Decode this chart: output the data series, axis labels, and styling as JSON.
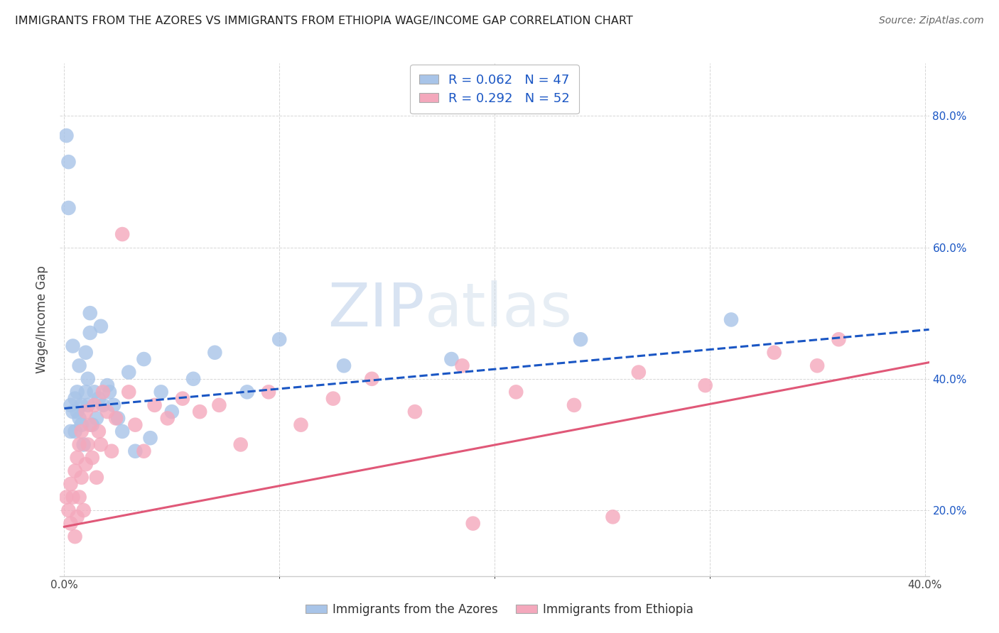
{
  "title": "IMMIGRANTS FROM THE AZORES VS IMMIGRANTS FROM ETHIOPIA WAGE/INCOME GAP CORRELATION CHART",
  "source": "Source: ZipAtlas.com",
  "ylabel": "Wage/Income Gap",
  "azores_color": "#a8c4e8",
  "ethiopia_color": "#f4a8bc",
  "azores_line_color": "#1a56c4",
  "ethiopia_line_color": "#e05878",
  "legend_text_color": "#1a56c4",
  "azores_R": 0.062,
  "azores_N": 47,
  "ethiopia_R": 0.292,
  "ethiopia_N": 52,
  "xlim": [
    -0.002,
    0.402
  ],
  "ylim": [
    0.1,
    0.88
  ],
  "yticks": [
    0.2,
    0.4,
    0.6,
    0.8
  ],
  "ytick_labels": [
    "20.0%",
    "40.0%",
    "60.0%",
    "80.0%"
  ],
  "xtick_left_label": "0.0%",
  "xtick_right_label": "40.0%",
  "watermark_zip": "ZIP",
  "watermark_atlas": "atlas",
  "azores_x": [
    0.001,
    0.002,
    0.002,
    0.003,
    0.003,
    0.004,
    0.004,
    0.005,
    0.005,
    0.006,
    0.006,
    0.007,
    0.007,
    0.008,
    0.008,
    0.009,
    0.01,
    0.01,
    0.011,
    0.011,
    0.012,
    0.012,
    0.013,
    0.014,
    0.015,
    0.016,
    0.017,
    0.018,
    0.02,
    0.021,
    0.023,
    0.025,
    0.027,
    0.03,
    0.033,
    0.037,
    0.04,
    0.045,
    0.05,
    0.06,
    0.07,
    0.085,
    0.1,
    0.13,
    0.18,
    0.24,
    0.31
  ],
  "azores_y": [
    0.77,
    0.66,
    0.73,
    0.36,
    0.32,
    0.35,
    0.45,
    0.32,
    0.37,
    0.35,
    0.38,
    0.34,
    0.42,
    0.36,
    0.33,
    0.3,
    0.38,
    0.44,
    0.4,
    0.36,
    0.5,
    0.47,
    0.33,
    0.38,
    0.34,
    0.37,
    0.48,
    0.36,
    0.39,
    0.38,
    0.36,
    0.34,
    0.32,
    0.41,
    0.29,
    0.43,
    0.31,
    0.38,
    0.35,
    0.4,
    0.44,
    0.38,
    0.46,
    0.42,
    0.43,
    0.46,
    0.49
  ],
  "ethiopia_x": [
    0.001,
    0.002,
    0.003,
    0.003,
    0.004,
    0.005,
    0.005,
    0.006,
    0.006,
    0.007,
    0.007,
    0.008,
    0.008,
    0.009,
    0.01,
    0.01,
    0.011,
    0.012,
    0.013,
    0.014,
    0.015,
    0.016,
    0.017,
    0.018,
    0.02,
    0.022,
    0.024,
    0.027,
    0.03,
    0.033,
    0.037,
    0.042,
    0.048,
    0.055,
    0.063,
    0.072,
    0.082,
    0.095,
    0.11,
    0.125,
    0.143,
    0.163,
    0.185,
    0.21,
    0.237,
    0.267,
    0.298,
    0.33,
    0.36,
    0.35,
    0.255,
    0.19
  ],
  "ethiopia_y": [
    0.22,
    0.2,
    0.24,
    0.18,
    0.22,
    0.16,
    0.26,
    0.19,
    0.28,
    0.22,
    0.3,
    0.25,
    0.32,
    0.2,
    0.27,
    0.35,
    0.3,
    0.33,
    0.28,
    0.36,
    0.25,
    0.32,
    0.3,
    0.38,
    0.35,
    0.29,
    0.34,
    0.62,
    0.38,
    0.33,
    0.29,
    0.36,
    0.34,
    0.37,
    0.35,
    0.36,
    0.3,
    0.38,
    0.33,
    0.37,
    0.4,
    0.35,
    0.42,
    0.38,
    0.36,
    0.41,
    0.39,
    0.44,
    0.46,
    0.42,
    0.19,
    0.18
  ],
  "azores_trend_x0": 0.0,
  "azores_trend_x1": 0.402,
  "azores_trend_y0": 0.355,
  "azores_trend_y1": 0.475,
  "ethiopia_trend_x0": 0.0,
  "ethiopia_trend_x1": 0.402,
  "ethiopia_trend_y0": 0.175,
  "ethiopia_trend_y1": 0.425,
  "background_color": "#ffffff",
  "grid_color": "#cccccc"
}
